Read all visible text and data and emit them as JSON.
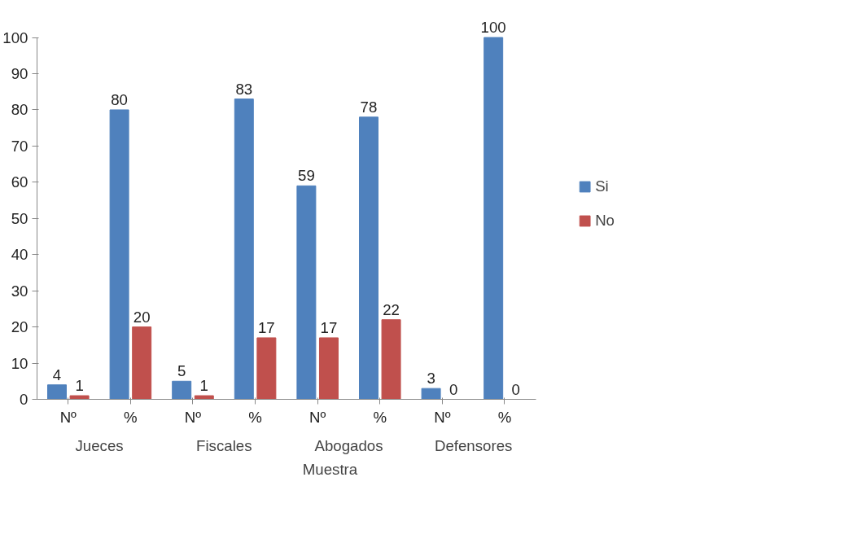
{
  "chart_data": {
    "type": "bar",
    "xlabel": "Muestra",
    "categories": [
      "Nº",
      "%",
      "Nº",
      "%",
      "Nº",
      "%",
      "Nº",
      "%"
    ],
    "annotations": [
      "Jueces",
      "Fiscales",
      "Abogados",
      "Defensores"
    ],
    "series": [
      {
        "name": "Si",
        "color": "#4f81bd",
        "values": [
          4,
          80,
          5,
          83,
          59,
          78,
          3,
          100
        ]
      },
      {
        "name": "No",
        "color": "#c0504d",
        "values": [
          1,
          20,
          1,
          17,
          17,
          22,
          0,
          0
        ]
      }
    ],
    "ylim": [
      0,
      100
    ],
    "yticks": [
      0,
      10,
      20,
      30,
      40,
      50,
      60,
      70,
      80,
      90,
      100
    ],
    "data_labels": true,
    "grid": false,
    "legend": "right"
  }
}
